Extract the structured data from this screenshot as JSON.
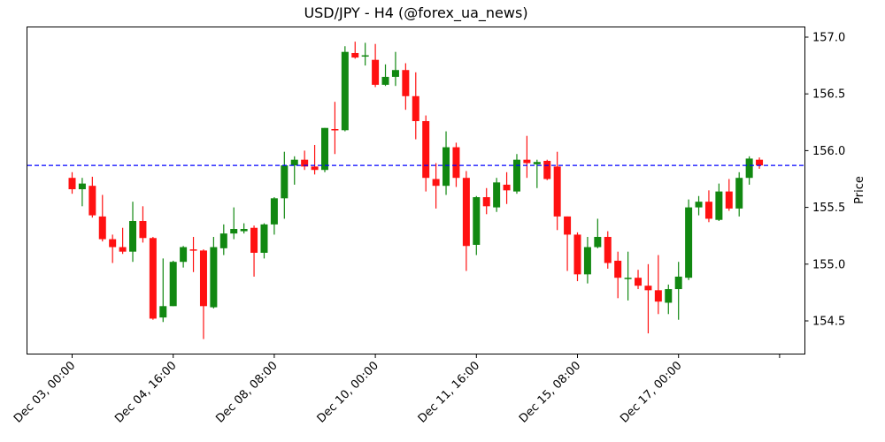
{
  "chart_data": {
    "type": "candlestick",
    "title": "USD/JPY - H4 (@forex_ua_news)",
    "xlabel": "",
    "ylabel": "Price",
    "ylim": [
      154.22,
      157.09
    ],
    "y_ticks": [
      "154.5",
      "155.0",
      "155.5",
      "156.0",
      "156.5",
      "157.0"
    ],
    "y_tick_values": [
      154.5,
      155.0,
      155.5,
      156.0,
      156.5,
      157.0
    ],
    "x_ticks": [
      "Dec 03, 00:00",
      "Dec 04, 16:00",
      "Dec 08, 08:00",
      "Dec 10, 00:00",
      "Dec 11, 16:00",
      "Dec 15, 08:00",
      "Dec 17, 00:00",
      ""
    ],
    "x_tick_candle_index": [
      0,
      10,
      20,
      30,
      40,
      50,
      60,
      70
    ],
    "y_axis_position": "right",
    "grid": false,
    "reference_line": {
      "value": 155.87,
      "color": "#0000ff",
      "style": "dashed"
    },
    "colors": {
      "up": "#118811",
      "down": "#ff1111"
    },
    "candles": [
      {
        "o": 155.76,
        "h": 155.81,
        "l": 155.62,
        "c": 155.66
      },
      {
        "o": 155.66,
        "h": 155.76,
        "l": 155.51,
        "c": 155.71
      },
      {
        "o": 155.69,
        "h": 155.77,
        "l": 155.41,
        "c": 155.43
      },
      {
        "o": 155.42,
        "h": 155.61,
        "l": 155.2,
        "c": 155.22
      },
      {
        "o": 155.22,
        "h": 155.26,
        "l": 155.01,
        "c": 155.15
      },
      {
        "o": 155.15,
        "h": 155.32,
        "l": 155.09,
        "c": 155.11
      },
      {
        "o": 155.11,
        "h": 155.55,
        "l": 155.02,
        "c": 155.38
      },
      {
        "o": 155.38,
        "h": 155.51,
        "l": 155.19,
        "c": 155.23
      },
      {
        "o": 155.23,
        "h": 155.24,
        "l": 154.51,
        "c": 154.52
      },
      {
        "o": 154.53,
        "h": 155.05,
        "l": 154.49,
        "c": 154.63
      },
      {
        "o": 154.63,
        "h": 155.03,
        "l": 154.63,
        "c": 155.02
      },
      {
        "o": 155.02,
        "h": 155.16,
        "l": 154.97,
        "c": 155.15
      },
      {
        "o": 155.13,
        "h": 155.24,
        "l": 154.93,
        "c": 155.12
      },
      {
        "o": 155.12,
        "h": 155.13,
        "l": 154.34,
        "c": 154.63
      },
      {
        "o": 154.62,
        "h": 155.24,
        "l": 154.61,
        "c": 155.15
      },
      {
        "o": 155.14,
        "h": 155.35,
        "l": 155.08,
        "c": 155.27
      },
      {
        "o": 155.27,
        "h": 155.5,
        "l": 155.22,
        "c": 155.31
      },
      {
        "o": 155.29,
        "h": 155.36,
        "l": 155.27,
        "c": 155.31
      },
      {
        "o": 155.32,
        "h": 155.34,
        "l": 154.89,
        "c": 155.1
      },
      {
        "o": 155.1,
        "h": 155.36,
        "l": 155.05,
        "c": 155.35
      },
      {
        "o": 155.35,
        "h": 155.59,
        "l": 155.26,
        "c": 155.58
      },
      {
        "o": 155.58,
        "h": 155.99,
        "l": 155.4,
        "c": 155.87
      },
      {
        "o": 155.87,
        "h": 155.95,
        "l": 155.7,
        "c": 155.92
      },
      {
        "o": 155.92,
        "h": 156.0,
        "l": 155.83,
        "c": 155.86
      },
      {
        "o": 155.86,
        "h": 156.05,
        "l": 155.79,
        "c": 155.83
      },
      {
        "o": 155.83,
        "h": 156.2,
        "l": 155.81,
        "c": 156.2
      },
      {
        "o": 156.19,
        "h": 156.43,
        "l": 155.97,
        "c": 156.18
      },
      {
        "o": 156.18,
        "h": 156.92,
        "l": 156.17,
        "c": 156.87
      },
      {
        "o": 156.86,
        "h": 156.96,
        "l": 156.81,
        "c": 156.82
      },
      {
        "o": 156.83,
        "h": 156.95,
        "l": 156.75,
        "c": 156.84
      },
      {
        "o": 156.8,
        "h": 156.94,
        "l": 156.56,
        "c": 156.58
      },
      {
        "o": 156.58,
        "h": 156.76,
        "l": 156.57,
        "c": 156.65
      },
      {
        "o": 156.65,
        "h": 156.87,
        "l": 156.57,
        "c": 156.71
      },
      {
        "o": 156.71,
        "h": 156.77,
        "l": 156.36,
        "c": 156.48
      },
      {
        "o": 156.48,
        "h": 156.69,
        "l": 156.1,
        "c": 156.26
      },
      {
        "o": 156.26,
        "h": 156.31,
        "l": 155.64,
        "c": 155.76
      },
      {
        "o": 155.75,
        "h": 155.89,
        "l": 155.49,
        "c": 155.69
      },
      {
        "o": 155.69,
        "h": 156.17,
        "l": 155.61,
        "c": 156.03
      },
      {
        "o": 156.03,
        "h": 156.07,
        "l": 155.68,
        "c": 155.76
      },
      {
        "o": 155.76,
        "h": 155.82,
        "l": 154.94,
        "c": 155.16
      },
      {
        "o": 155.17,
        "h": 155.6,
        "l": 155.08,
        "c": 155.59
      },
      {
        "o": 155.59,
        "h": 155.67,
        "l": 155.44,
        "c": 155.51
      },
      {
        "o": 155.5,
        "h": 155.76,
        "l": 155.46,
        "c": 155.72
      },
      {
        "o": 155.7,
        "h": 155.81,
        "l": 155.53,
        "c": 155.65
      },
      {
        "o": 155.64,
        "h": 155.97,
        "l": 155.62,
        "c": 155.92
      },
      {
        "o": 155.92,
        "h": 156.13,
        "l": 155.76,
        "c": 155.89
      },
      {
        "o": 155.88,
        "h": 155.92,
        "l": 155.67,
        "c": 155.9
      },
      {
        "o": 155.91,
        "h": 155.92,
        "l": 155.74,
        "c": 155.75
      },
      {
        "o": 155.86,
        "h": 155.99,
        "l": 155.3,
        "c": 155.42
      },
      {
        "o": 155.42,
        "h": 155.41,
        "l": 154.94,
        "c": 155.26
      },
      {
        "o": 155.26,
        "h": 155.28,
        "l": 154.85,
        "c": 154.91
      },
      {
        "o": 154.91,
        "h": 155.24,
        "l": 154.83,
        "c": 155.15
      },
      {
        "o": 155.15,
        "h": 155.4,
        "l": 155.14,
        "c": 155.24
      },
      {
        "o": 155.24,
        "h": 155.29,
        "l": 154.96,
        "c": 155.01
      },
      {
        "o": 155.03,
        "h": 155.11,
        "l": 154.7,
        "c": 154.88
      },
      {
        "o": 154.88,
        "h": 155.11,
        "l": 154.68,
        "c": 154.88
      },
      {
        "o": 154.88,
        "h": 154.95,
        "l": 154.78,
        "c": 154.81
      },
      {
        "o": 154.81,
        "h": 155.0,
        "l": 154.39,
        "c": 154.77
      },
      {
        "o": 154.77,
        "h": 155.08,
        "l": 154.56,
        "c": 154.67
      },
      {
        "o": 154.66,
        "h": 154.82,
        "l": 154.56,
        "c": 154.78
      },
      {
        "o": 154.78,
        "h": 155.02,
        "l": 154.51,
        "c": 154.89
      },
      {
        "o": 154.88,
        "h": 155.57,
        "l": 154.86,
        "c": 155.5
      },
      {
        "o": 155.5,
        "h": 155.6,
        "l": 155.43,
        "c": 155.55
      },
      {
        "o": 155.55,
        "h": 155.65,
        "l": 155.37,
        "c": 155.4
      },
      {
        "o": 155.39,
        "h": 155.71,
        "l": 155.38,
        "c": 155.64
      },
      {
        "o": 155.64,
        "h": 155.75,
        "l": 155.47,
        "c": 155.49
      },
      {
        "o": 155.49,
        "h": 155.81,
        "l": 155.42,
        "c": 155.76
      },
      {
        "o": 155.76,
        "h": 155.95,
        "l": 155.7,
        "c": 155.93
      },
      {
        "o": 155.92,
        "h": 155.94,
        "l": 155.84,
        "c": 155.87
      }
    ]
  }
}
